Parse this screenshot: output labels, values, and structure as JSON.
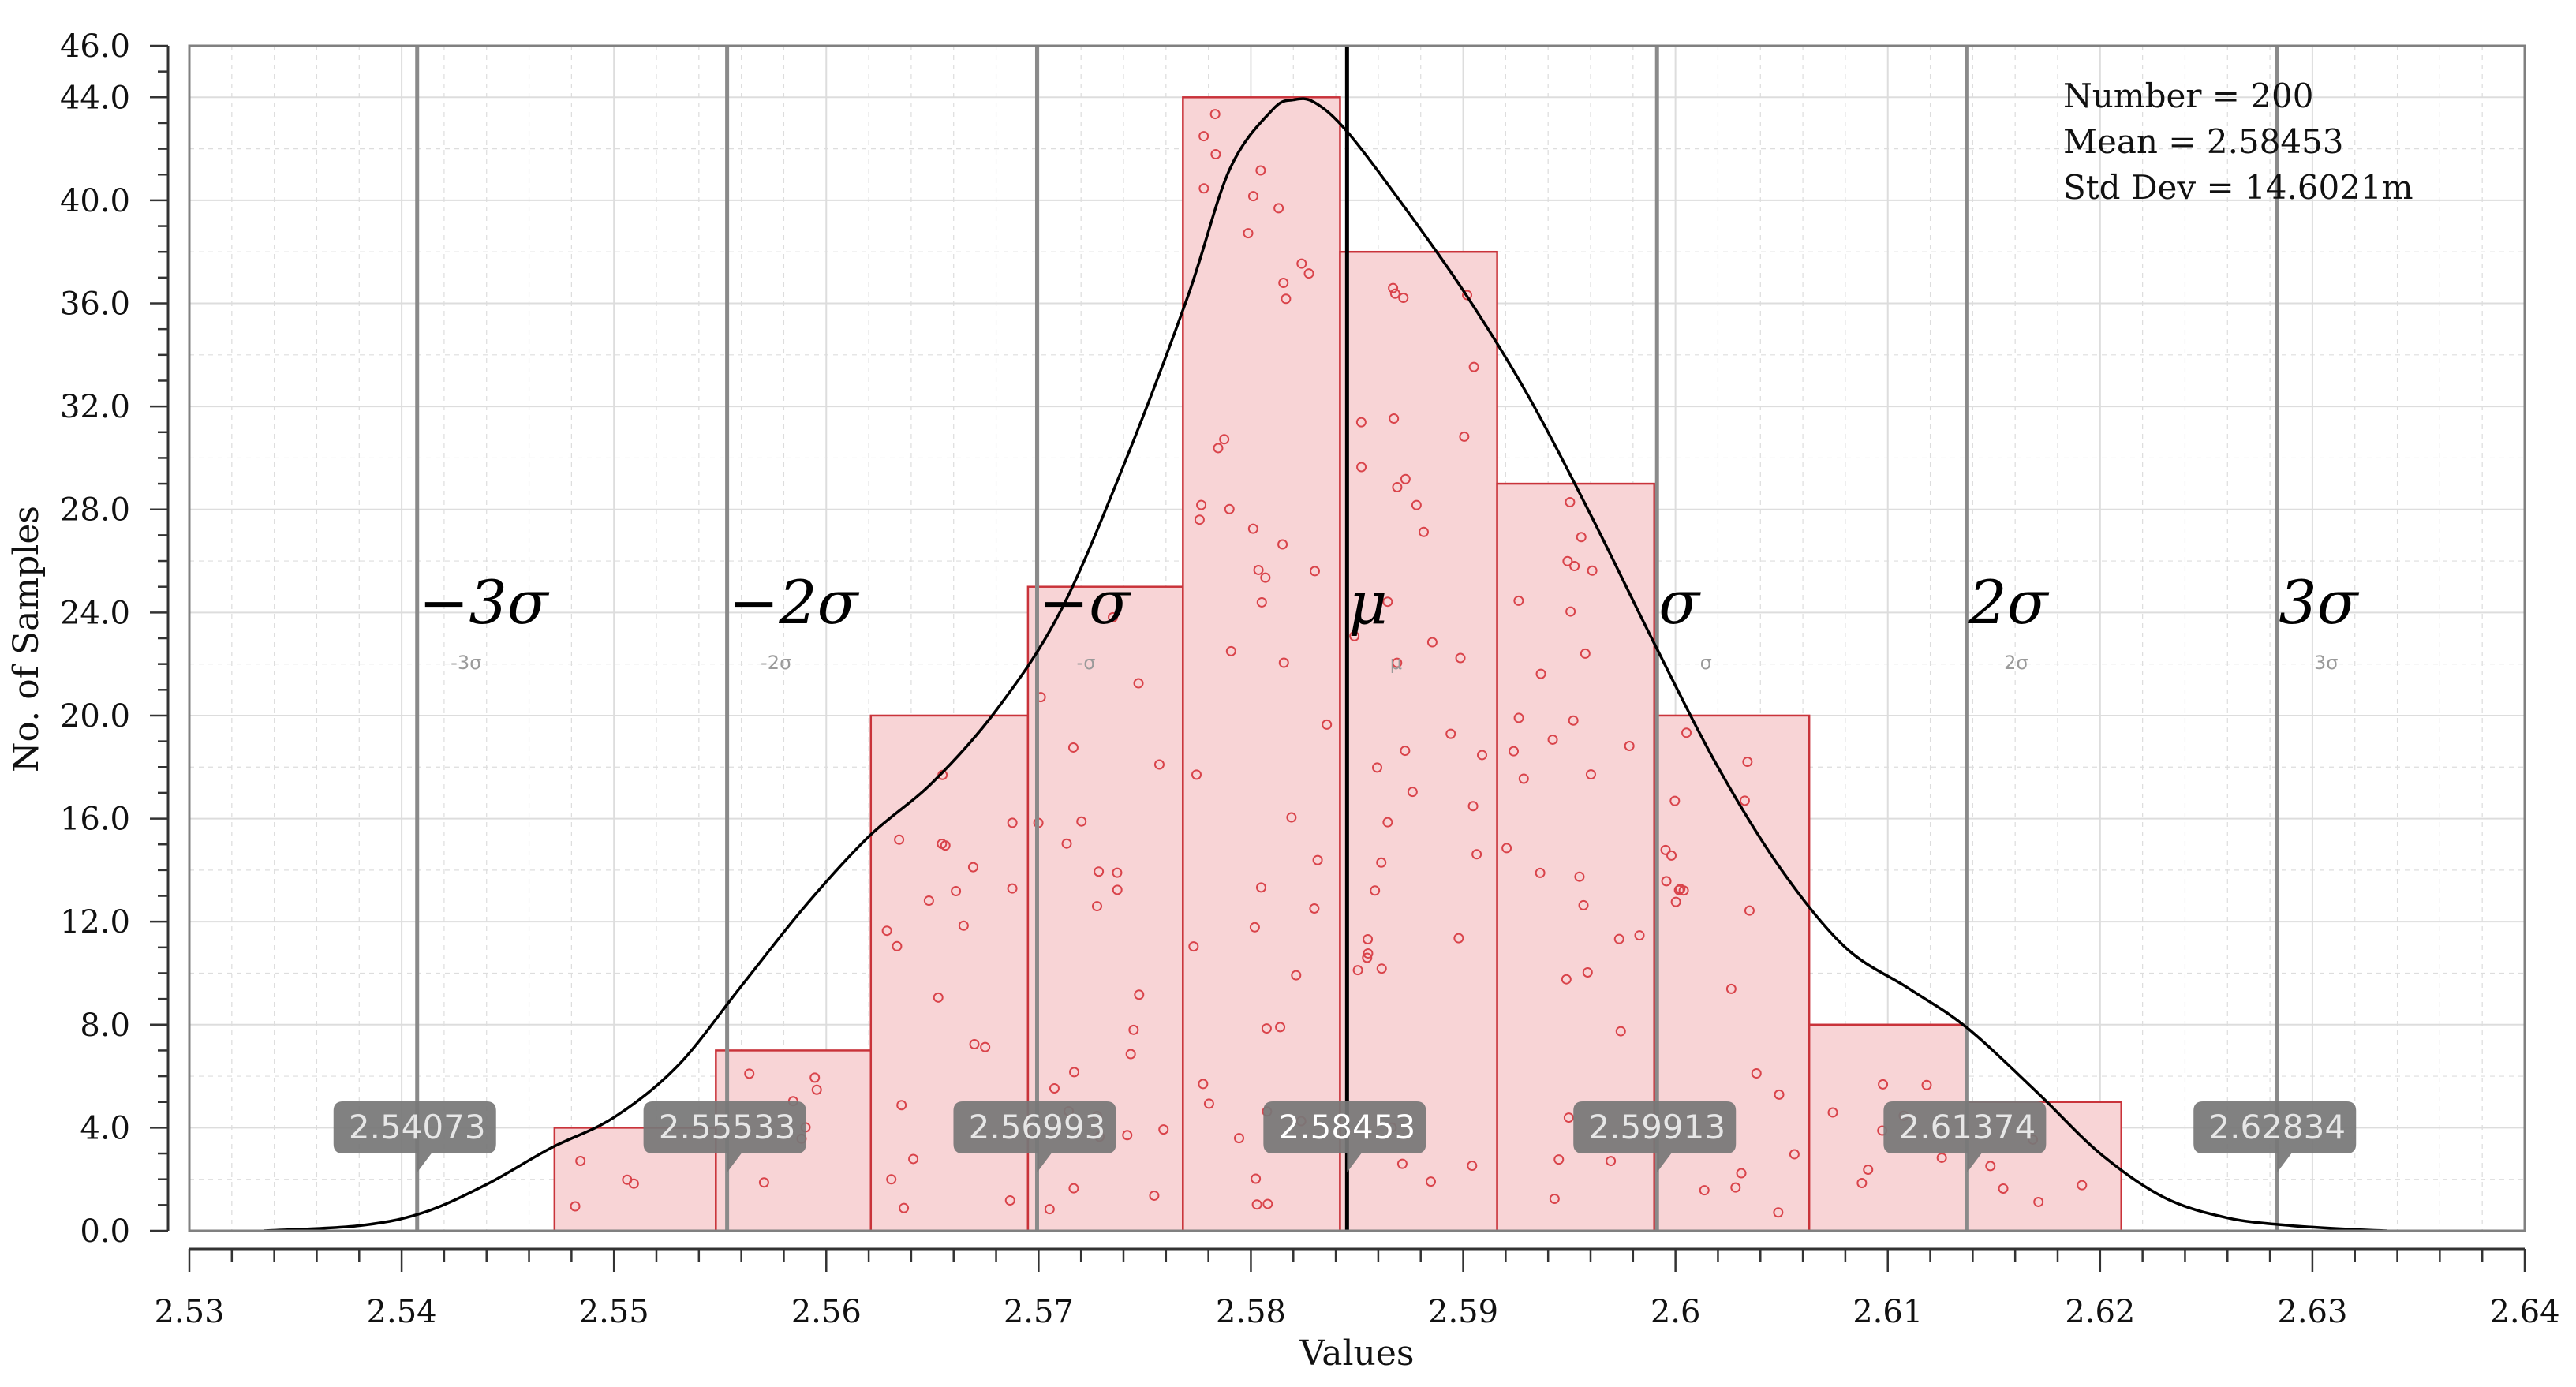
{
  "chart_data": {
    "type": "bar",
    "xlabel": "Values",
    "ylabel": "No. of Samples",
    "xlim": [
      2.53,
      2.64
    ],
    "ylim": [
      0,
      46
    ],
    "x_ticks": [
      "2.53",
      "2.54",
      "2.55",
      "2.56",
      "2.57",
      "2.58",
      "2.59",
      "2.6",
      "2.61",
      "2.62",
      "2.63",
      "2.64"
    ],
    "x_tick_values": [
      2.53,
      2.54,
      2.55,
      2.56,
      2.57,
      2.58,
      2.59,
      2.6,
      2.61,
      2.62,
      2.63,
      2.64
    ],
    "y_ticks": [
      "0.0",
      "4.0",
      "8.0",
      "12.0",
      "16.0",
      "20.0",
      "24.0",
      "28.0",
      "32.0",
      "36.0",
      "40.0",
      "44.0",
      "46.0"
    ],
    "y_tick_values": [
      0,
      4,
      8,
      12,
      16,
      20,
      24,
      28,
      32,
      36,
      40,
      44,
      46
    ],
    "grid": true,
    "bins": [
      {
        "start": 2.5472,
        "end": 2.5548,
        "count": 4
      },
      {
        "start": 2.5548,
        "end": 2.5621,
        "count": 7
      },
      {
        "start": 2.5621,
        "end": 2.5695,
        "count": 20
      },
      {
        "start": 2.5695,
        "end": 2.5768,
        "count": 25
      },
      {
        "start": 2.5768,
        "end": 2.5842,
        "count": 44
      },
      {
        "start": 2.5842,
        "end": 2.5916,
        "count": 38
      },
      {
        "start": 2.5916,
        "end": 2.599,
        "count": 29
      },
      {
        "start": 2.599,
        "end": 2.6063,
        "count": 20
      },
      {
        "start": 2.6063,
        "end": 2.6137,
        "count": 8
      },
      {
        "start": 2.6137,
        "end": 2.621,
        "count": 5
      }
    ],
    "density_curve": {
      "x": [
        2.5335,
        2.538,
        2.541,
        2.544,
        2.547,
        2.55,
        2.553,
        2.556,
        2.559,
        2.562,
        2.565,
        2.568,
        2.571,
        2.574,
        2.577,
        2.579,
        2.581,
        2.582,
        2.583,
        2.5845,
        2.587,
        2.59,
        2.593,
        2.596,
        2.599,
        2.602,
        2.605,
        2.608,
        2.611,
        2.6137,
        2.617,
        2.62,
        2.623,
        2.626,
        2.629,
        2.632,
        2.6335
      ],
      "y": [
        0.0,
        0.2,
        0.7,
        1.8,
        3.2,
        4.4,
        6.4,
        9.5,
        12.6,
        15.3,
        17.4,
        20.2,
        24.0,
        29.7,
        36.2,
        41.2,
        43.5,
        43.9,
        43.8,
        42.7,
        40.0,
        36.5,
        32.5,
        27.8,
        22.8,
        18.0,
        14.0,
        11.0,
        9.4,
        7.9,
        5.4,
        3.0,
        1.3,
        0.5,
        0.2,
        0.05,
        0.0
      ]
    },
    "sigma_lines": [
      {
        "value": 2.54073,
        "label": "2.54073",
        "big": "−3σ",
        "small": "-3σ"
      },
      {
        "value": 2.55533,
        "label": "2.55533",
        "big": "−2σ",
        "small": "-2σ"
      },
      {
        "value": 2.56993,
        "label": "2.56993",
        "big": "−σ",
        "small": "-σ"
      },
      {
        "value": 2.58453,
        "label": "2.58453",
        "big": "μ",
        "small": "μ",
        "mean": true
      },
      {
        "value": 2.59913,
        "label": "2.59913",
        "big": "σ",
        "small": "σ"
      },
      {
        "value": 2.61374,
        "label": "2.61374",
        "big": "2σ",
        "small": "2σ"
      },
      {
        "value": 2.62834,
        "label": "2.62834",
        "big": "3σ",
        "small": "3σ"
      }
    ],
    "stats": {
      "number": "Number = 200",
      "mean": "Mean = 2.58453",
      "std_dev": "Std Dev = 14.6021m"
    },
    "colors": {
      "bar_fill": "#f8d4d6",
      "bar_stroke": "#c9333a",
      "point": "#d9434a",
      "curve": "#000000",
      "sigma_line": "#8a8a8a",
      "mean_line": "#000000",
      "callout": "#777777",
      "grid": "#dddddd"
    }
  }
}
